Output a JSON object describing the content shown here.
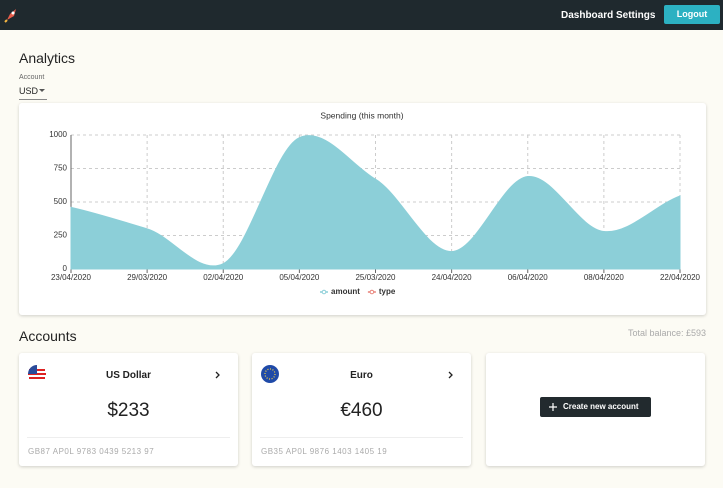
{
  "nav": {
    "links": [
      "Dashboard",
      "Settings"
    ],
    "logout": "Logout"
  },
  "analytics": {
    "title": "Analytics",
    "account_label": "Account",
    "account_value": "USD"
  },
  "chart_data": {
    "type": "area",
    "title": "Spending (this month)",
    "categories": [
      "23/04/2020",
      "29/03/2020",
      "02/04/2020",
      "05/04/2020",
      "25/03/2020",
      "24/04/2020",
      "06/04/2020",
      "08/04/2020",
      "22/04/2020"
    ],
    "series": [
      {
        "name": "amount",
        "color": "#8ccfd8",
        "values": [
          460,
          300,
          40,
          980,
          670,
          130,
          690,
          280,
          545
        ]
      },
      {
        "name": "type",
        "color": "#e8837a",
        "values": [
          null,
          null,
          null,
          null,
          null,
          null,
          null,
          null,
          null
        ]
      }
    ],
    "ylim": [
      0,
      1000
    ],
    "yticks": [
      0,
      250,
      500,
      750,
      1000
    ],
    "grid": true,
    "legend": "bottom"
  },
  "accounts": {
    "title": "Accounts",
    "total_balance": "Total balance: £593",
    "cards": [
      {
        "name": "US Dollar",
        "balance": "$233",
        "iban": "GB87 AP0L 9783 0439 5213 97"
      },
      {
        "name": "Euro",
        "balance": "€460",
        "iban": "GB35 AP0L 9876 1403 1405 19"
      }
    ],
    "create": "Create new account"
  }
}
